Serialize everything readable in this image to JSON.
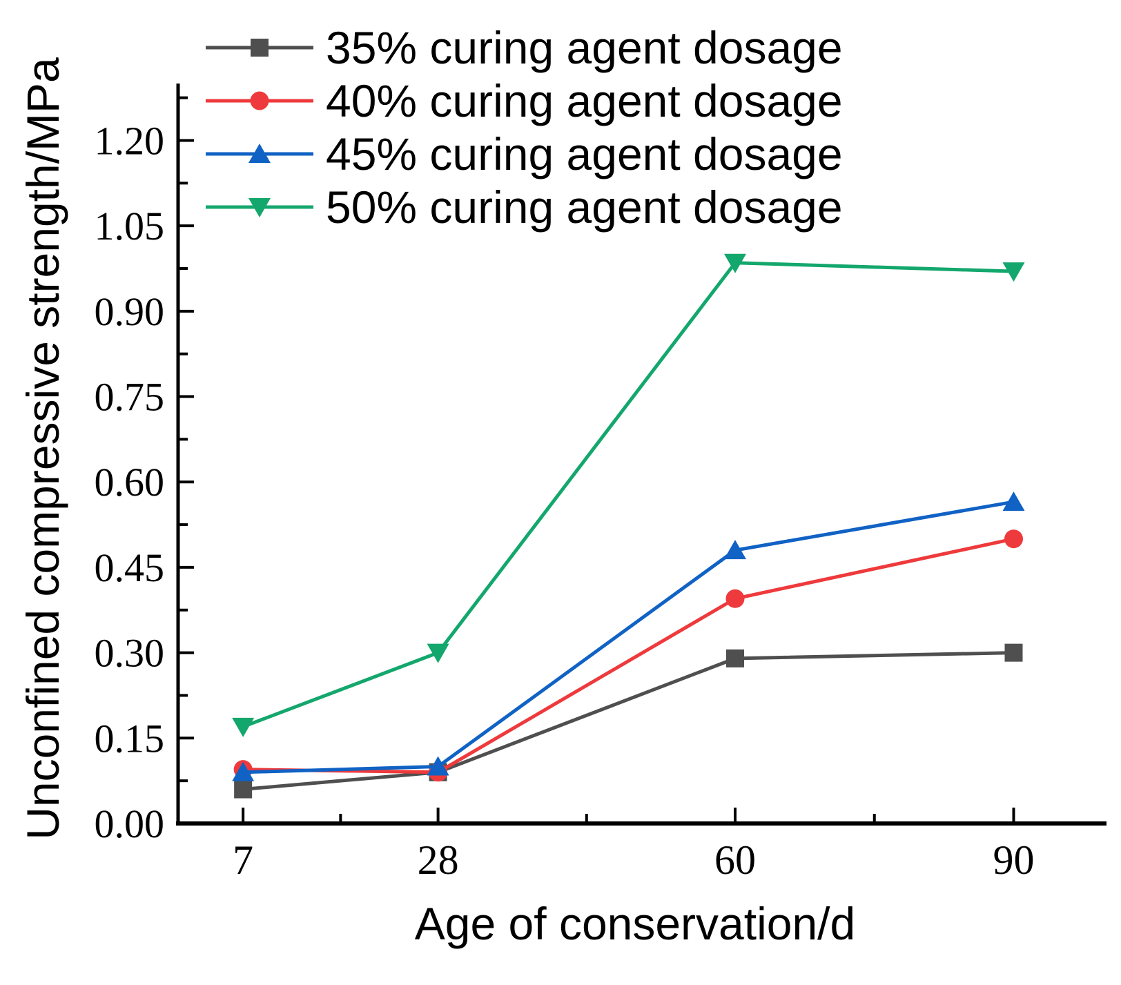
{
  "figure": {
    "background": "#ffffff",
    "axis_color": "#000000"
  },
  "chart_data": {
    "type": "line",
    "title": "",
    "xlabel": "Age of conservation/d",
    "ylabel": "Unconfined compressive strength/MPa",
    "x": [
      7,
      28,
      60,
      90
    ],
    "x_tick_labels": [
      "7",
      "28",
      "60",
      "90"
    ],
    "x_minor_ticks": [
      17.5,
      44,
      75
    ],
    "xlim": [
      0,
      100
    ],
    "ylim": [
      0,
      1.3
    ],
    "y_ticks": [
      0,
      0.15,
      0.3,
      0.45,
      0.6,
      0.75,
      0.9,
      1.05,
      1.2
    ],
    "y_tick_labels": [
      "0.00",
      "0.15",
      "0.30",
      "0.45",
      "0.60",
      "0.75",
      "0.90",
      "1.05",
      "1.20"
    ],
    "y_minor_ticks": [
      0.075,
      0.225,
      0.375,
      0.525,
      0.675,
      0.825,
      0.975,
      1.125,
      1.275
    ],
    "grid": false,
    "legend_position": "top-left",
    "series": [
      {
        "name": "35% curing agent dosage",
        "color": "#4f4f4f",
        "marker": "square",
        "values": [
          0.06,
          0.09,
          0.29,
          0.3
        ]
      },
      {
        "name": "40% curing agent dosage",
        "color": "#ee3a3c",
        "marker": "circle",
        "values": [
          0.095,
          0.09,
          0.395,
          0.5
        ]
      },
      {
        "name": "45% curing agent dosage",
        "color": "#1062c4",
        "marker": "triangle-up",
        "values": [
          0.09,
          0.1,
          0.48,
          0.565
        ]
      },
      {
        "name": "50% curing agent dosage",
        "color": "#14a76d",
        "marker": "triangle-down",
        "values": [
          0.17,
          0.3,
          0.985,
          0.97
        ]
      }
    ]
  }
}
